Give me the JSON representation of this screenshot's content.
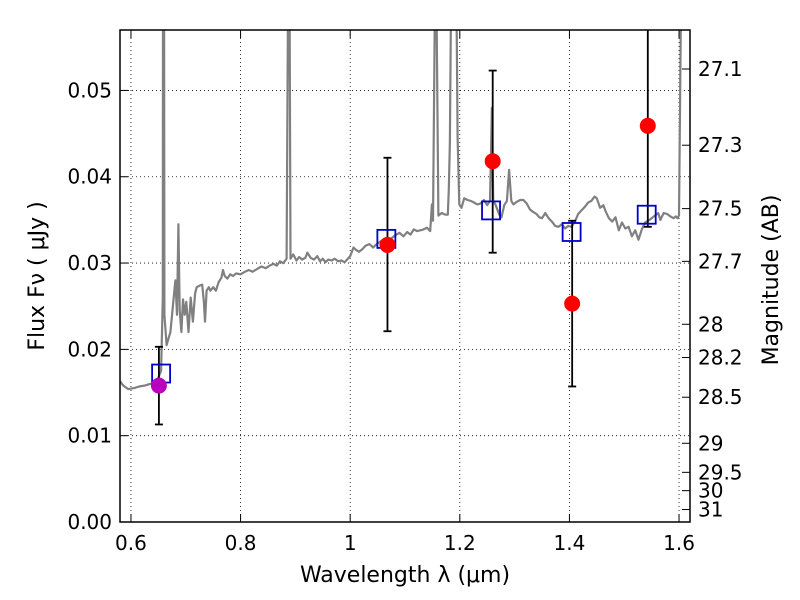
{
  "chart_data": {
    "type": "scatter",
    "xlabel": "Wavelength  λ (μm)",
    "ylabel": "Flux  Fν  ( μJy )",
    "y2label": "Magnitude (AB)",
    "xlim": [
      0.58,
      1.62
    ],
    "ylim": [
      0.0,
      0.057
    ],
    "grid": true,
    "x_ticks": [
      {
        "value": 0.6,
        "label": "0.6"
      },
      {
        "value": 0.8,
        "label": "0.8"
      },
      {
        "value": 1.0,
        "label": "1"
      },
      {
        "value": 1.2,
        "label": "1.2"
      },
      {
        "value": 1.4,
        "label": "1.4"
      },
      {
        "value": 1.6,
        "label": "1.6"
      }
    ],
    "y_ticks": [
      {
        "value": 0.0,
        "label": "0.00"
      },
      {
        "value": 0.01,
        "label": "0.01"
      },
      {
        "value": 0.02,
        "label": "0.02"
      },
      {
        "value": 0.03,
        "label": "0.03"
      },
      {
        "value": 0.04,
        "label": "0.04"
      },
      {
        "value": 0.05,
        "label": "0.05"
      }
    ],
    "y2_ticks": [
      {
        "mag": 27.1,
        "label": "27.1"
      },
      {
        "mag": 27.3,
        "label": "27.3"
      },
      {
        "mag": 27.5,
        "label": "27.5"
      },
      {
        "mag": 27.7,
        "label": "27.7"
      },
      {
        "mag": 28.0,
        "label": "28"
      },
      {
        "mag": 28.2,
        "label": "28.2"
      },
      {
        "mag": 28.5,
        "label": "28.5"
      },
      {
        "mag": 29.0,
        "label": "29"
      },
      {
        "mag": 29.5,
        "label": "29.5"
      },
      {
        "mag": 30.0,
        "label": "30"
      },
      {
        "mag": 31.0,
        "label": "31"
      }
    ],
    "model_spectrum": {
      "color": "#808080",
      "points": [
        [
          0.58,
          0.0163
        ],
        [
          0.586,
          0.0158
        ],
        [
          0.595,
          0.0154
        ],
        [
          0.605,
          0.0155
        ],
        [
          0.615,
          0.0157
        ],
        [
          0.625,
          0.0158
        ],
        [
          0.635,
          0.016
        ],
        [
          0.645,
          0.016
        ],
        [
          0.655,
          0.0175
        ],
        [
          0.658,
          0.026
        ],
        [
          0.6585,
          0.06
        ],
        [
          0.6605,
          0.06
        ],
        [
          0.661,
          0.024
        ],
        [
          0.665,
          0.0205
        ],
        [
          0.672,
          0.022
        ],
        [
          0.678,
          0.026
        ],
        [
          0.681,
          0.028
        ],
        [
          0.684,
          0.024
        ],
        [
          0.6865,
          0.0345
        ],
        [
          0.689,
          0.0245
        ],
        [
          0.692,
          0.022
        ],
        [
          0.695,
          0.0258
        ],
        [
          0.698,
          0.024
        ],
        [
          0.701,
          0.0255
        ],
        [
          0.705,
          0.022
        ],
        [
          0.709,
          0.026
        ],
        [
          0.713,
          0.0232
        ],
        [
          0.717,
          0.0265
        ],
        [
          0.72,
          0.0272
        ],
        [
          0.726,
          0.0274
        ],
        [
          0.73,
          0.0275
        ],
        [
          0.733,
          0.0255
        ],
        [
          0.735,
          0.0232
        ],
        [
          0.738,
          0.0268
        ],
        [
          0.742,
          0.0272
        ],
        [
          0.745,
          0.0268
        ],
        [
          0.75,
          0.0272
        ],
        [
          0.755,
          0.0268
        ],
        [
          0.76,
          0.0278
        ],
        [
          0.765,
          0.0283
        ],
        [
          0.768,
          0.0292
        ],
        [
          0.771,
          0.0285
        ],
        [
          0.776,
          0.0282
        ],
        [
          0.781,
          0.0287
        ],
        [
          0.786,
          0.0285
        ],
        [
          0.792,
          0.0288
        ],
        [
          0.8,
          0.0287
        ],
        [
          0.808,
          0.029
        ],
        [
          0.815,
          0.0292
        ],
        [
          0.822,
          0.029
        ],
        [
          0.83,
          0.0293
        ],
        [
          0.838,
          0.0296
        ],
        [
          0.846,
          0.0294
        ],
        [
          0.853,
          0.0297
        ],
        [
          0.86,
          0.0299
        ],
        [
          0.866,
          0.0297
        ],
        [
          0.872,
          0.0302
        ],
        [
          0.878,
          0.03
        ],
        [
          0.884,
          0.0305
        ],
        [
          0.8865,
          0.06
        ],
        [
          0.8895,
          0.06
        ],
        [
          0.891,
          0.0305
        ],
        [
          0.896,
          0.031
        ],
        [
          0.902,
          0.0303
        ],
        [
          0.907,
          0.0307
        ],
        [
          0.912,
          0.0304
        ],
        [
          0.918,
          0.0306
        ],
        [
          0.922,
          0.0312
        ],
        [
          0.928,
          0.0306
        ],
        [
          0.934,
          0.0304
        ],
        [
          0.94,
          0.0308
        ],
        [
          0.945,
          0.0302
        ],
        [
          0.95,
          0.0305
        ],
        [
          0.955,
          0.0301
        ],
        [
          0.96,
          0.0304
        ],
        [
          0.966,
          0.0303
        ],
        [
          0.972,
          0.0305
        ],
        [
          0.978,
          0.0302
        ],
        [
          0.984,
          0.0303
        ],
        [
          0.99,
          0.0301
        ],
        [
          1.0,
          0.0308
        ],
        [
          1.006,
          0.0318
        ],
        [
          1.011,
          0.0315
        ],
        [
          1.016,
          0.0313
        ],
        [
          1.022,
          0.0316
        ],
        [
          1.028,
          0.032
        ],
        [
          1.035,
          0.0322
        ],
        [
          1.042,
          0.0318
        ],
        [
          1.05,
          0.0323
        ],
        [
          1.058,
          0.0326
        ],
        [
          1.066,
          0.0324
        ],
        [
          1.074,
          0.0328
        ],
        [
          1.082,
          0.0332
        ],
        [
          1.09,
          0.0335
        ],
        [
          1.097,
          0.0331
        ],
        [
          1.104,
          0.0336
        ],
        [
          1.11,
          0.0333
        ],
        [
          1.116,
          0.0339
        ],
        [
          1.122,
          0.0337
        ],
        [
          1.128,
          0.0338
        ],
        [
          1.134,
          0.0339
        ],
        [
          1.14,
          0.0341
        ],
        [
          1.146,
          0.0337
        ],
        [
          1.149,
          0.0368
        ],
        [
          1.151,
          0.0349
        ],
        [
          1.1545,
          0.06
        ],
        [
          1.1575,
          0.06
        ],
        [
          1.161,
          0.0355
        ],
        [
          1.167,
          0.0358
        ],
        [
          1.174,
          0.0356
        ],
        [
          1.178,
          0.0356
        ],
        [
          1.18,
          0.0385
        ],
        [
          1.182,
          0.0441
        ],
        [
          1.184,
          0.06
        ],
        [
          1.194,
          0.06
        ],
        [
          1.196,
          0.0445
        ],
        [
          1.199,
          0.0368
        ],
        [
          1.203,
          0.0364
        ],
        [
          1.208,
          0.0375
        ],
        [
          1.214,
          0.0373
        ],
        [
          1.22,
          0.0372
        ],
        [
          1.226,
          0.037
        ],
        [
          1.232,
          0.0368
        ],
        [
          1.238,
          0.0369
        ],
        [
          1.244,
          0.0373
        ],
        [
          1.25,
          0.0367
        ],
        [
          1.255,
          0.0372
        ],
        [
          1.2585,
          0.048
        ],
        [
          1.261,
          0.0372
        ],
        [
          1.265,
          0.0368
        ],
        [
          1.272,
          0.0356
        ],
        [
          1.276,
          0.0353
        ],
        [
          1.281,
          0.0367
        ],
        [
          1.286,
          0.0372
        ],
        [
          1.29,
          0.0408
        ],
        [
          1.294,
          0.0372
        ],
        [
          1.298,
          0.0368
        ],
        [
          1.304,
          0.0371
        ],
        [
          1.31,
          0.0373
        ],
        [
          1.316,
          0.0373
        ],
        [
          1.322,
          0.0369
        ],
        [
          1.328,
          0.0362
        ],
        [
          1.334,
          0.0359
        ],
        [
          1.34,
          0.0357
        ],
        [
          1.345,
          0.0353
        ],
        [
          1.35,
          0.0352
        ],
        [
          1.356,
          0.0358
        ],
        [
          1.362,
          0.0352
        ],
        [
          1.368,
          0.0348
        ],
        [
          1.374,
          0.0343
        ],
        [
          1.38,
          0.0342
        ],
        [
          1.386,
          0.0345
        ],
        [
          1.392,
          0.034
        ],
        [
          1.398,
          0.0343
        ],
        [
          1.404,
          0.0342
        ],
        [
          1.41,
          0.0348
        ],
        [
          1.416,
          0.0357
        ],
        [
          1.422,
          0.0361
        ],
        [
          1.428,
          0.0365
        ],
        [
          1.434,
          0.037
        ],
        [
          1.44,
          0.0372
        ],
        [
          1.446,
          0.0377
        ],
        [
          1.45,
          0.0375
        ],
        [
          1.456,
          0.0364
        ],
        [
          1.462,
          0.0367
        ],
        [
          1.466,
          0.036
        ],
        [
          1.472,
          0.0352
        ],
        [
          1.478,
          0.0348
        ],
        [
          1.484,
          0.0353
        ],
        [
          1.49,
          0.0338
        ],
        [
          1.496,
          0.0347
        ],
        [
          1.502,
          0.034
        ],
        [
          1.508,
          0.0342
        ],
        [
          1.514,
          0.0331
        ],
        [
          1.52,
          0.0338
        ],
        [
          1.526,
          0.0327
        ],
        [
          1.532,
          0.0339
        ],
        [
          1.538,
          0.0347
        ],
        [
          1.544,
          0.0349
        ],
        [
          1.55,
          0.0352
        ],
        [
          1.556,
          0.0355
        ],
        [
          1.562,
          0.0358
        ],
        [
          1.566,
          0.035
        ],
        [
          1.572,
          0.0358
        ],
        [
          1.578,
          0.0357
        ],
        [
          1.584,
          0.0354
        ],
        [
          1.59,
          0.0352
        ],
        [
          1.594,
          0.0354
        ],
        [
          1.597,
          0.0352
        ],
        [
          1.6,
          0.0355
        ],
        [
          1.6035,
          0.06
        ],
        [
          1.62,
          0.06
        ]
      ]
    },
    "synthetic_photometry": {
      "color": "#0000cc",
      "points": [
        {
          "x": 0.655,
          "y": 0.0172
        },
        {
          "x": 1.066,
          "y": 0.0328
        },
        {
          "x": 1.257,
          "y": 0.0361
        },
        {
          "x": 1.404,
          "y": 0.0336
        },
        {
          "x": 1.541,
          "y": 0.0356
        }
      ]
    },
    "observed_photometry": {
      "color": "#ff0000",
      "points": [
        {
          "x": 1.068,
          "y": 0.0321,
          "ylow": 0.0221,
          "yhigh": 0.0422
        },
        {
          "x": 1.26,
          "y": 0.0418,
          "ylow": 0.0312,
          "yhigh": 0.0523
        },
        {
          "x": 1.405,
          "y": 0.0253,
          "ylow": 0.0157,
          "yhigh": 0.0349
        },
        {
          "x": 1.543,
          "y": 0.0459,
          "ylow": 0.0342,
          "yhigh": 0.0575
        }
      ]
    },
    "combined_photometry": {
      "color": "#bb00bb",
      "points": [
        {
          "x": 0.651,
          "y": 0.0158,
          "ylow": 0.0113,
          "yhigh": 0.0203
        }
      ]
    }
  }
}
